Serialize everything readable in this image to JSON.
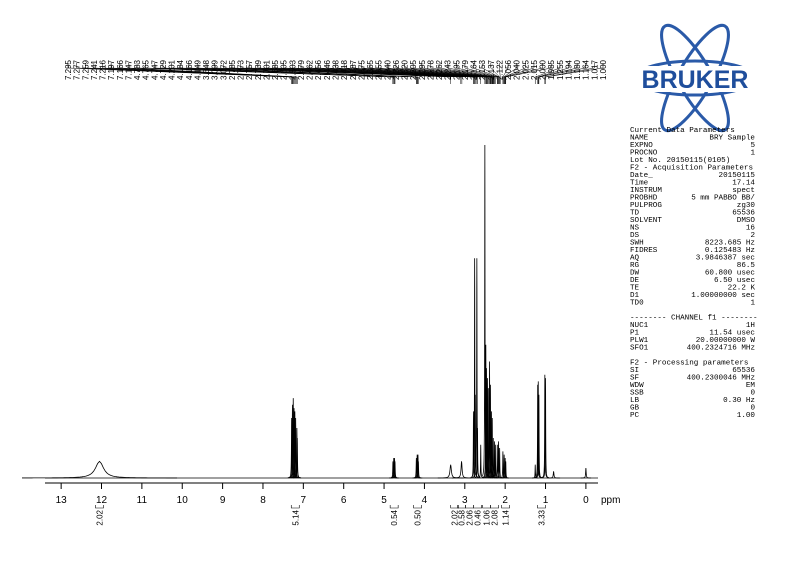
{
  "chart_data": {
    "type": "spectrum",
    "xlabel": "ppm",
    "xlim": [
      13.4,
      -0.3
    ],
    "xticks": [
      13,
      12,
      11,
      10,
      9,
      8,
      7,
      6,
      5,
      4,
      3,
      2,
      1,
      0
    ],
    "ylim": [
      0,
      100
    ],
    "color": "#000000",
    "peaks": {
      "x": [
        12.05,
        7.29,
        7.27,
        7.25,
        7.23,
        7.21,
        7.19,
        7.16,
        7.15,
        4.78,
        4.76,
        4.74,
        4.73,
        4.2,
        4.18,
        4.16,
        4.15,
        3.35,
        3.08,
        2.785,
        2.756,
        2.739,
        2.701,
        2.685,
        2.605,
        2.503,
        2.479,
        2.462,
        2.438,
        2.418,
        2.387,
        2.365,
        2.34,
        2.32,
        2.295,
        2.262,
        2.243,
        2.195,
        2.164,
        2.137,
        2.056,
        2.025,
        2.0,
        1.985,
        1.255,
        1.194,
        1.18,
        1.164,
        1.017,
        1.0,
        0.8,
        0
      ],
      "values": [
        5,
        18,
        22,
        24,
        21,
        20,
        18,
        15,
        12,
        5,
        6,
        6,
        5,
        6,
        7,
        7,
        5,
        4,
        5,
        20,
        66,
        25,
        66,
        15,
        10,
        100,
        40,
        33,
        30,
        27,
        35,
        28,
        20,
        18,
        12,
        11,
        10,
        10,
        11,
        9,
        8,
        7,
        6,
        5,
        4,
        28,
        29,
        25,
        31,
        30,
        2,
        3
      ],
      "widths": [
        0.12,
        0.006,
        0.006,
        0.006,
        0.006,
        0.006,
        0.006,
        0.006,
        0.006,
        0.006,
        0.006,
        0.006,
        0.006,
        0.006,
        0.006,
        0.006,
        0.006,
        0.02,
        0.015,
        0.005,
        0.005,
        0.005,
        0.005,
        0.005,
        0.005,
        0.005,
        0.005,
        0.005,
        0.005,
        0.005,
        0.005,
        0.005,
        0.005,
        0.005,
        0.005,
        0.005,
        0.005,
        0.005,
        0.005,
        0.005,
        0.005,
        0.005,
        0.005,
        0.005,
        0.005,
        0.005,
        0.005,
        0.005,
        0.005,
        0.005,
        0.01,
        0.008
      ]
    },
    "peak_labels": [
      7.295,
      7.277,
      7.259,
      7.241,
      7.216,
      7.197,
      7.166,
      7.147,
      4.783,
      4.765,
      4.747,
      4.729,
      4.201,
      4.184,
      4.166,
      4.149,
      3.348,
      3.099,
      3.072,
      2.785,
      2.773,
      2.757,
      2.739,
      2.701,
      2.685,
      2.605,
      2.503,
      2.479,
      2.462,
      2.456,
      2.446,
      2.438,
      2.418,
      2.387,
      2.375,
      2.365,
      2.355,
      {
        "value": 2.34,
        "label": "2.340"
      },
      2.326,
      {
        "value": 2.32,
        "label": "2.320"
      },
      2.305,
      2.295,
      2.278,
      2.262,
      2.243,
      2.195,
      2.179,
      2.164,
      2.153,
      2.137,
      2.122,
      2.056,
      {
        "value": 2.04,
        "label": "2.040"
      },
      2.025,
      2.015,
      {
        "value": 2.0,
        "label": "2.000"
      },
      1.985,
      1.255,
      1.194,
      {
        "value": 1.18,
        "label": "1.180"
      },
      1.164,
      1.017,
      {
        "value": 1.0,
        "label": "1.000"
      }
    ],
    "integrals": {
      "x": [
        12.05,
        7.2,
        4.75,
        4.17,
        3.25,
        3.08,
        2.88,
        2.68,
        2.46,
        2.26,
        1.99,
        1.1
      ],
      "values": [
        2.02,
        5.14,
        0.54,
        0.5,
        2.02,
        0.58,
        2.06,
        0.46,
        1.06,
        2.08,
        1.14,
        3.33
      ],
      "value_labels": [
        "2.02",
        "5.14",
        "0.54",
        "0.50",
        "2.02",
        "0.58",
        "2.06",
        "0.46",
        "1.06",
        "2.08",
        "1.14",
        "3.33"
      ]
    }
  },
  "logo": {
    "text": "BRUKER"
  },
  "parameters": [
    {
      "heading": "Current Data Parameters",
      "rows": [
        [
          "NAME",
          "BRY Sample"
        ],
        [
          "EXPNO",
          "5"
        ],
        [
          "PROCNO",
          "1"
        ]
      ]
    },
    {
      "heading": "Lot No. 20150115(0105)",
      "rows": []
    },
    {
      "heading": "F2 - Acquisition Parameters",
      "rows": [
        [
          "Date_",
          "20150115"
        ],
        [
          "Time",
          "17.14"
        ],
        [
          "INSTRUM",
          "spect"
        ],
        [
          "PROBHD",
          "5 mm PABBO BB/"
        ],
        [
          "PULPROG",
          "zg30"
        ],
        [
          "TD",
          "65536"
        ],
        [
          "SOLVENT",
          "DMSO"
        ],
        [
          "NS",
          "16"
        ],
        [
          "DS",
          "2"
        ],
        [
          "SWH",
          "8223.685 Hz"
        ],
        [
          "FIDRES",
          "0.125483 Hz"
        ],
        [
          "AQ",
          "3.9846387 sec"
        ],
        [
          "RG",
          "86.5"
        ],
        [
          "DW",
          "60.800 usec"
        ],
        [
          "DE",
          "6.50 usec"
        ],
        [
          "TE",
          "22.2 K"
        ],
        [
          "D1",
          "1.00000000 sec"
        ],
        [
          "TD0",
          "1"
        ]
      ]
    },
    {
      "heading": "-------- CHANNEL f1 --------",
      "rows": [
        [
          "NUC1",
          "1H"
        ],
        [
          "P1",
          "11.54 usec"
        ],
        [
          "PLW1",
          "20.00000000 W"
        ],
        [
          "SFO1",
          "400.2324716 MHz"
        ]
      ]
    },
    {
      "heading": "F2 - Processing parameters",
      "rows": [
        [
          "SI",
          "65536"
        ],
        [
          "SF",
          "400.2300046 MHz"
        ],
        [
          "WDW",
          "EM"
        ],
        [
          "SSB",
          "0"
        ],
        [
          "LB",
          "0.30 Hz"
        ],
        [
          "GB",
          "0"
        ],
        [
          "PC",
          "1.00"
        ]
      ]
    }
  ]
}
